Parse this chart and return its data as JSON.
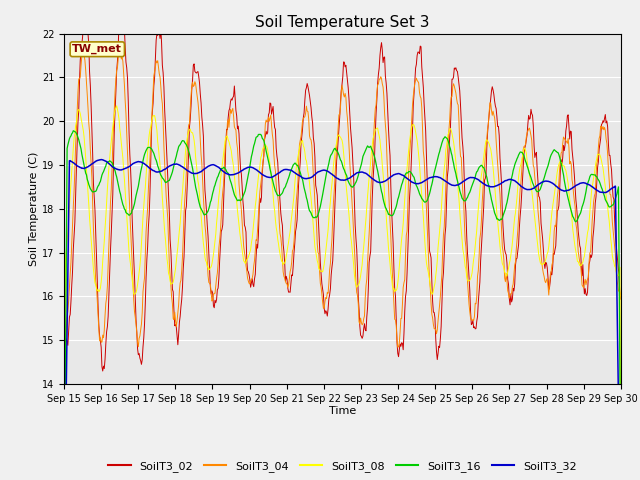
{
  "title": "Soil Temperature Set 3",
  "xlabel": "Time",
  "ylabel": "Soil Temperature (C)",
  "ylim": [
    14.0,
    22.0
  ],
  "yticks": [
    14.0,
    15.0,
    16.0,
    17.0,
    18.0,
    19.0,
    20.0,
    21.0,
    22.0
  ],
  "plot_bg_color": "#e8e8e8",
  "fig_bg_color": "#f0f0f0",
  "series_colors": {
    "SoilT3_02": "#cc0000",
    "SoilT3_04": "#ff8800",
    "SoilT3_08": "#ffff00",
    "SoilT3_16": "#00cc00",
    "SoilT3_32": "#0000cc"
  },
  "annotation_text": "TW_met",
  "annotation_color": "#880000",
  "annotation_bg": "#ffffcc",
  "annotation_border": "#aa8800",
  "n_days": 15,
  "start_day": 15,
  "points_per_day": 48,
  "title_fontsize": 11,
  "axis_label_fontsize": 8,
  "tick_fontsize": 7,
  "legend_fontsize": 8
}
